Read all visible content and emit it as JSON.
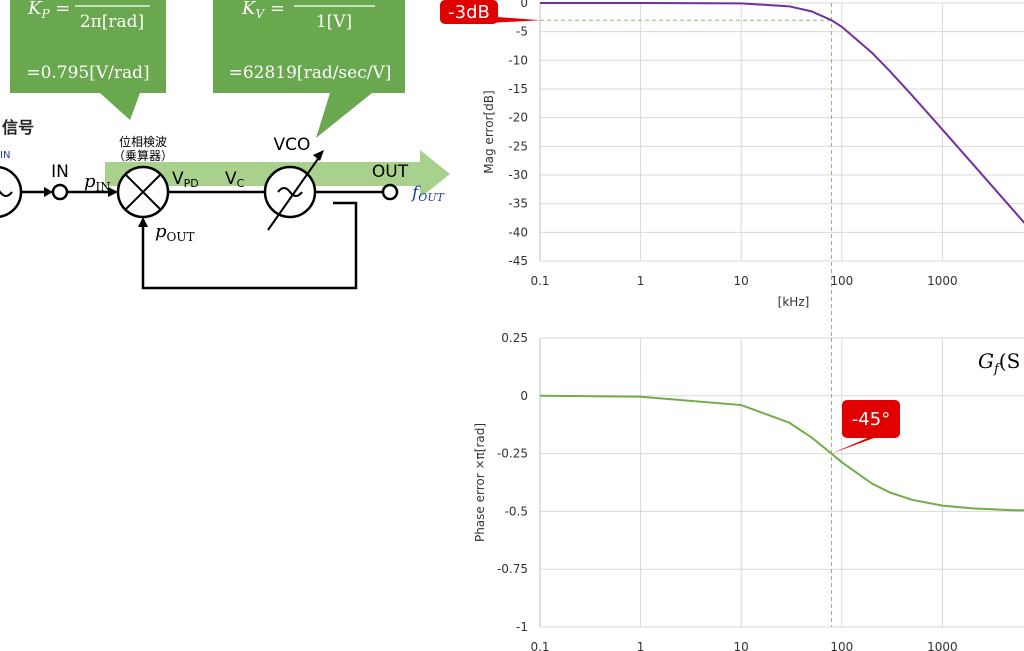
{
  "diagram": {
    "callouts": [
      {
        "lhs": {
          "base": "K",
          "sub": "P",
          "rest": " ="
        },
        "denominator": "2π[rad]",
        "value": "=0.795[V/rad]"
      },
      {
        "lhs": {
          "base": "K",
          "sub": "V",
          "rest": " ="
        },
        "denominator": "1[V]",
        "value": "=62819[rad/sec/V]"
      }
    ],
    "labels": {
      "signal": "信号",
      "in_fragment": "IN",
      "in": "IN",
      "p_in": {
        "base": "p",
        "sub": "IN"
      },
      "detector": "位相検波",
      "multiplier": "（乗算器）",
      "v_pd": {
        "base": "V",
        "sub": "PD"
      },
      "v_c": {
        "base": "V",
        "sub": "C"
      },
      "vco": "VCO",
      "out": "OUT",
      "f_out": {
        "base": "f",
        "sub": "OUT"
      },
      "p_out": {
        "base": "p",
        "sub": "OUT"
      }
    }
  },
  "chart_data": [
    {
      "type": "line",
      "xlabel": "[kHz]",
      "ylabel": "Mag error[dB]",
      "xscale": "log",
      "x": [
        0.1,
        1,
        10,
        30,
        50,
        79,
        100,
        200,
        300,
        500,
        1000,
        2000,
        5000,
        7000
      ],
      "values": [
        0,
        0,
        -0.07,
        -0.58,
        -1.46,
        -3.01,
        -4.15,
        -8.7,
        -11.88,
        -16.13,
        -22.07,
        -28.07,
        -36.03,
        -38.95
      ],
      "color": "#7030a0",
      "xlim": [
        0.1,
        10000
      ],
      "xticks": [
        0.1,
        1,
        10,
        100,
        1000
      ],
      "ylim": [
        -45,
        0
      ],
      "yticks": [
        0,
        -5,
        -10,
        -15,
        -20,
        -25,
        -30,
        -35,
        -40,
        -45
      ],
      "grid": true,
      "ref_lines": {
        "x": 79,
        "y": -3
      },
      "annotation": "-3dB"
    },
    {
      "type": "line",
      "ylabel": "Phase error  ×π[rad]",
      "xscale": "log",
      "title": {
        "base": "G",
        "sub": "f",
        "rest": "(S"
      },
      "x": [
        0.1,
        1,
        10,
        30,
        50,
        79,
        100,
        200,
        300,
        500,
        1000,
        2000,
        5000,
        7000
      ],
      "values": [
        0,
        -0.004,
        -0.04,
        -0.116,
        -0.18,
        -0.25,
        -0.287,
        -0.38,
        -0.418,
        -0.45,
        -0.475,
        -0.487,
        -0.495,
        -0.496
      ],
      "color": "#70ad47",
      "xlim": [
        0.1,
        10000
      ],
      "xticks": [
        0.1,
        1,
        10,
        100,
        1000
      ],
      "ylim": [
        -1,
        0.25
      ],
      "yticks": [
        0.25,
        0,
        -0.25,
        -0.5,
        -0.75,
        -1
      ],
      "grid": true,
      "ref_lines": {
        "x": 79
      },
      "annotation": "-45°"
    }
  ]
}
